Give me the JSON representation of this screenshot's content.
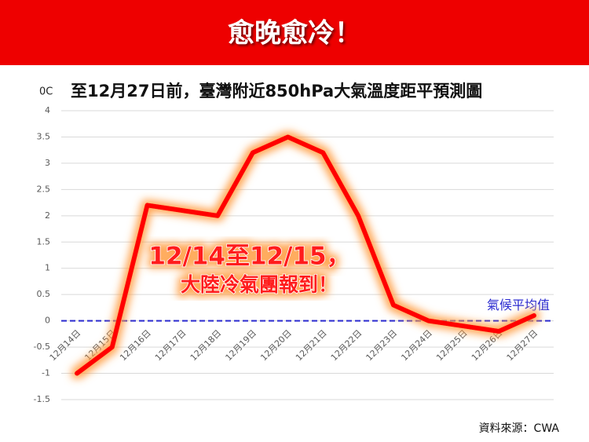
{
  "chart_data": {
    "type": "line",
    "banner": "愈晚愈冷！",
    "title": "至12月27日前，臺灣附近850hPa大氣溫度距平預測圖",
    "y_unit": "0C",
    "categories": [
      "12月14日",
      "12月15日",
      "12月16日",
      "12月17日",
      "12月18日",
      "12月19日",
      "12月20日",
      "12月21日",
      "12月22日",
      "12月23日",
      "12月24日",
      "12月25日",
      "12月26日",
      "12月27日"
    ],
    "values": [
      -1,
      -0.5,
      2.2,
      2.1,
      2.0,
      3.2,
      3.5,
      3.2,
      2.0,
      0.3,
      0.0,
      -0.1,
      -0.2,
      0.1
    ],
    "color": "#ff0000",
    "ylim": [
      -1.5,
      4
    ],
    "yticks": [
      4,
      3.5,
      3,
      2.5,
      2,
      1.5,
      1,
      0.5,
      0,
      -0.5,
      -1,
      -1.5
    ],
    "grid": true,
    "reference_line": {
      "value": 0,
      "label": "氣候平均值",
      "color": "#2b2bd0"
    },
    "annotations": [
      "12/14至12/15，",
      "大陸冷氣團報到！"
    ],
    "source": "資料來源：CWA"
  }
}
